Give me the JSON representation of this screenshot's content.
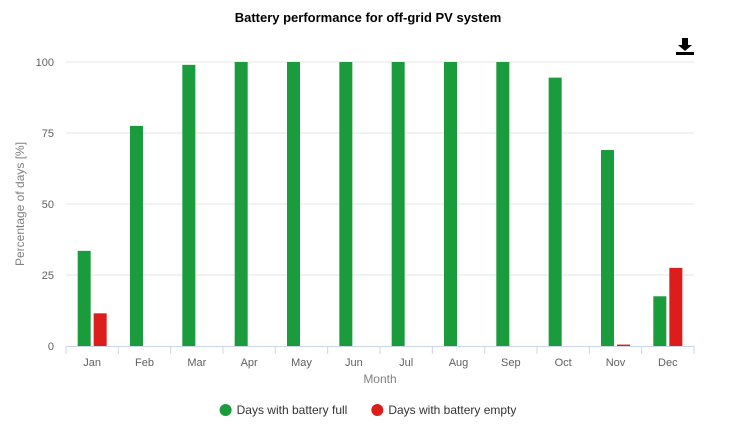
{
  "chart_data": {
    "type": "bar",
    "title": "Battery performance for off-grid PV system",
    "xlabel": "Month",
    "ylabel": "Percentage of days [%]",
    "ylim": [
      0,
      100
    ],
    "yticks": [
      "0",
      "25",
      "50",
      "75",
      "100"
    ],
    "grid": true,
    "legend_position": "bottom",
    "categories": [
      "Jan",
      "Feb",
      "Mar",
      "Apr",
      "May",
      "Jun",
      "Jul",
      "Aug",
      "Sep",
      "Oct",
      "Nov",
      "Dec"
    ],
    "series": [
      {
        "name": "Days with battery full",
        "color": "#1a9b3c",
        "values": [
          33.5,
          77.5,
          99,
          100,
          100,
          100,
          100,
          100,
          100,
          94.5,
          69,
          17.5
        ]
      },
      {
        "name": "Days with battery empty",
        "color": "#dd1c1c",
        "values": [
          11.5,
          0,
          0,
          0,
          0,
          0,
          0,
          0,
          0,
          0,
          0.5,
          27.5
        ]
      }
    ]
  },
  "toolbar": {
    "icon": "download-icon"
  }
}
